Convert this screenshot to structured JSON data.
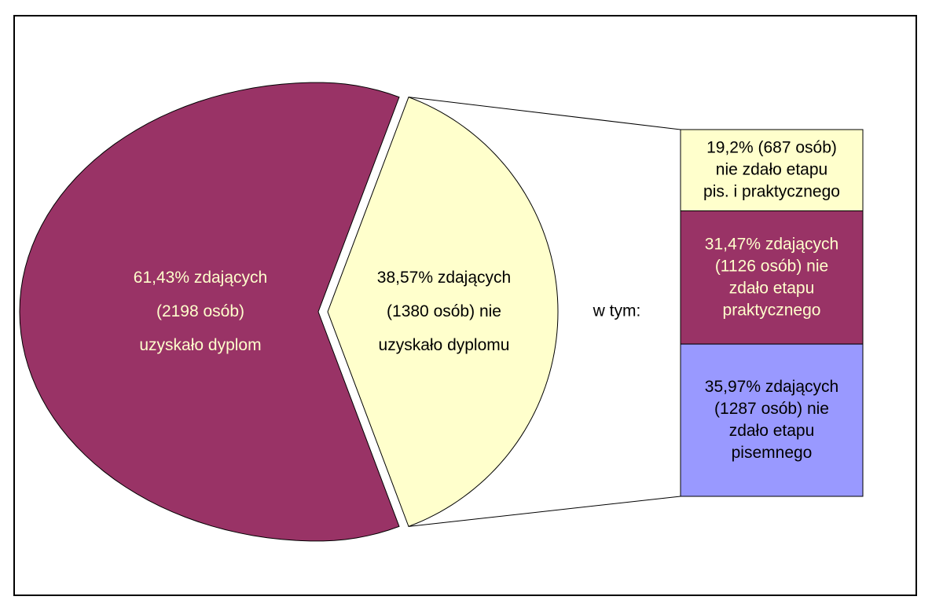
{
  "chart_data": {
    "type": "bar-of-pie",
    "values": [
      61.43,
      38.57
    ],
    "value_labels": [
      "61,43% zdających\n(2198 osób)\nuzyskało dyplom",
      "38,57% zdających\n(1380 osób) nie\nuzyskało dyplomu"
    ],
    "colors": [
      "#993366",
      "#ffffcc"
    ],
    "label_colors": [
      "#ffffcc",
      "#000000"
    ],
    "breakdown": {
      "annotation": "w tym:",
      "values": [
        19.2,
        31.47,
        35.97
      ],
      "value_labels": [
        "19,2% (687 osób)\nnie zdało etapu\npis. i praktycznego",
        "31,47% zdających\n(1126 osób) nie\nzdało etapu\npraktycznego",
        "35,97% zdających\n(1287 osób) nie\nzdało etapu\npisemnego"
      ],
      "colors": [
        "#ffffcc",
        "#993366",
        "#9999ff"
      ],
      "label_colors": [
        "#000000",
        "#ffffcc",
        "#000000"
      ]
    }
  }
}
